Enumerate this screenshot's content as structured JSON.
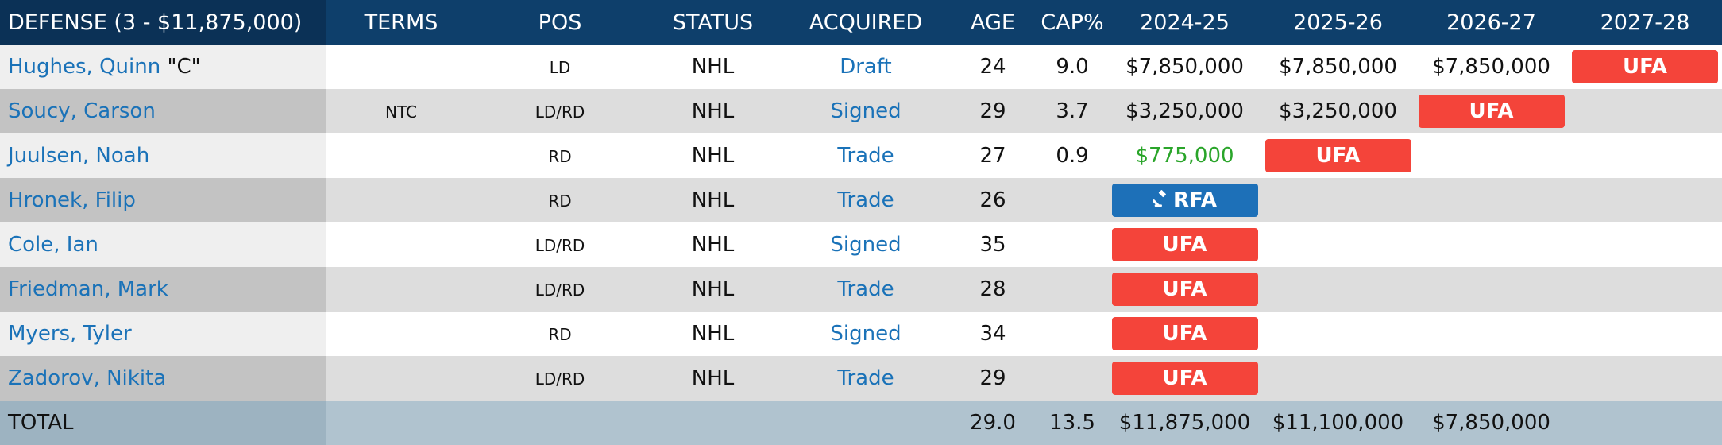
{
  "header": {
    "section_title": "DEFENSE (3 - $11,875,000)",
    "terms": "TERMS",
    "pos": "POS",
    "status": "STATUS",
    "acquired": "ACQUIRED",
    "age": "AGE",
    "cap_pct": "CAP%",
    "y1": "2024-25",
    "y2": "2025-26",
    "y3": "2026-27",
    "y4": "2027-28"
  },
  "rows": [
    {
      "name": "Hughes, Quinn",
      "captain": "\"C\"",
      "terms": "",
      "pos": "LD",
      "status": "NHL",
      "acquired": "Draft",
      "age": "24",
      "cap": "9.0",
      "y1": "$7,850,000",
      "y2": "$7,850,000",
      "y3": "$7,850,000",
      "y4": "UFA"
    },
    {
      "name": "Soucy, Carson",
      "captain": "",
      "terms": "NTC",
      "pos": "LD/RD",
      "status": "NHL",
      "acquired": "Signed",
      "age": "29",
      "cap": "3.7",
      "y1": "$3,250,000",
      "y2": "$3,250,000",
      "y3": "UFA",
      "y4": ""
    },
    {
      "name": "Juulsen, Noah",
      "captain": "",
      "terms": "",
      "pos": "RD",
      "status": "NHL",
      "acquired": "Trade",
      "age": "27",
      "cap": "0.9",
      "y1": "$775,000",
      "y2": "UFA",
      "y3": "",
      "y4": ""
    },
    {
      "name": "Hronek, Filip",
      "captain": "",
      "terms": "",
      "pos": "RD",
      "status": "NHL",
      "acquired": "Trade",
      "age": "26",
      "cap": "",
      "y1": "RFA",
      "y2": "",
      "y3": "",
      "y4": ""
    },
    {
      "name": "Cole, Ian",
      "captain": "",
      "terms": "",
      "pos": "LD/RD",
      "status": "NHL",
      "acquired": "Signed",
      "age": "35",
      "cap": "",
      "y1": "UFA",
      "y2": "",
      "y3": "",
      "y4": ""
    },
    {
      "name": "Friedman, Mark",
      "captain": "",
      "terms": "",
      "pos": "LD/RD",
      "status": "NHL",
      "acquired": "Trade",
      "age": "28",
      "cap": "",
      "y1": "UFA",
      "y2": "",
      "y3": "",
      "y4": ""
    },
    {
      "name": "Myers, Tyler",
      "captain": "",
      "terms": "",
      "pos": "RD",
      "status": "NHL",
      "acquired": "Signed",
      "age": "34",
      "cap": "",
      "y1": "UFA",
      "y2": "",
      "y3": "",
      "y4": ""
    },
    {
      "name": "Zadorov, Nikita",
      "captain": "",
      "terms": "",
      "pos": "LD/RD",
      "status": "NHL",
      "acquired": "Trade",
      "age": "29",
      "cap": "",
      "y1": "UFA",
      "y2": "",
      "y3": "",
      "y4": ""
    }
  ],
  "total": {
    "label": "TOTAL",
    "age": "29.0",
    "cap": "13.5",
    "y1": "$11,875,000",
    "y2": "$11,100,000",
    "y3": "$7,850,000",
    "y4": ""
  },
  "colors": {
    "header_bg": "#0e3f6b",
    "link": "#1a72b8",
    "ufa": "#f4443a",
    "rfa": "#1d70b8",
    "min_salary": "#2aa52a",
    "total_bg": "#b0c3cf"
  },
  "icons": {
    "rfa": "gavel-icon"
  }
}
